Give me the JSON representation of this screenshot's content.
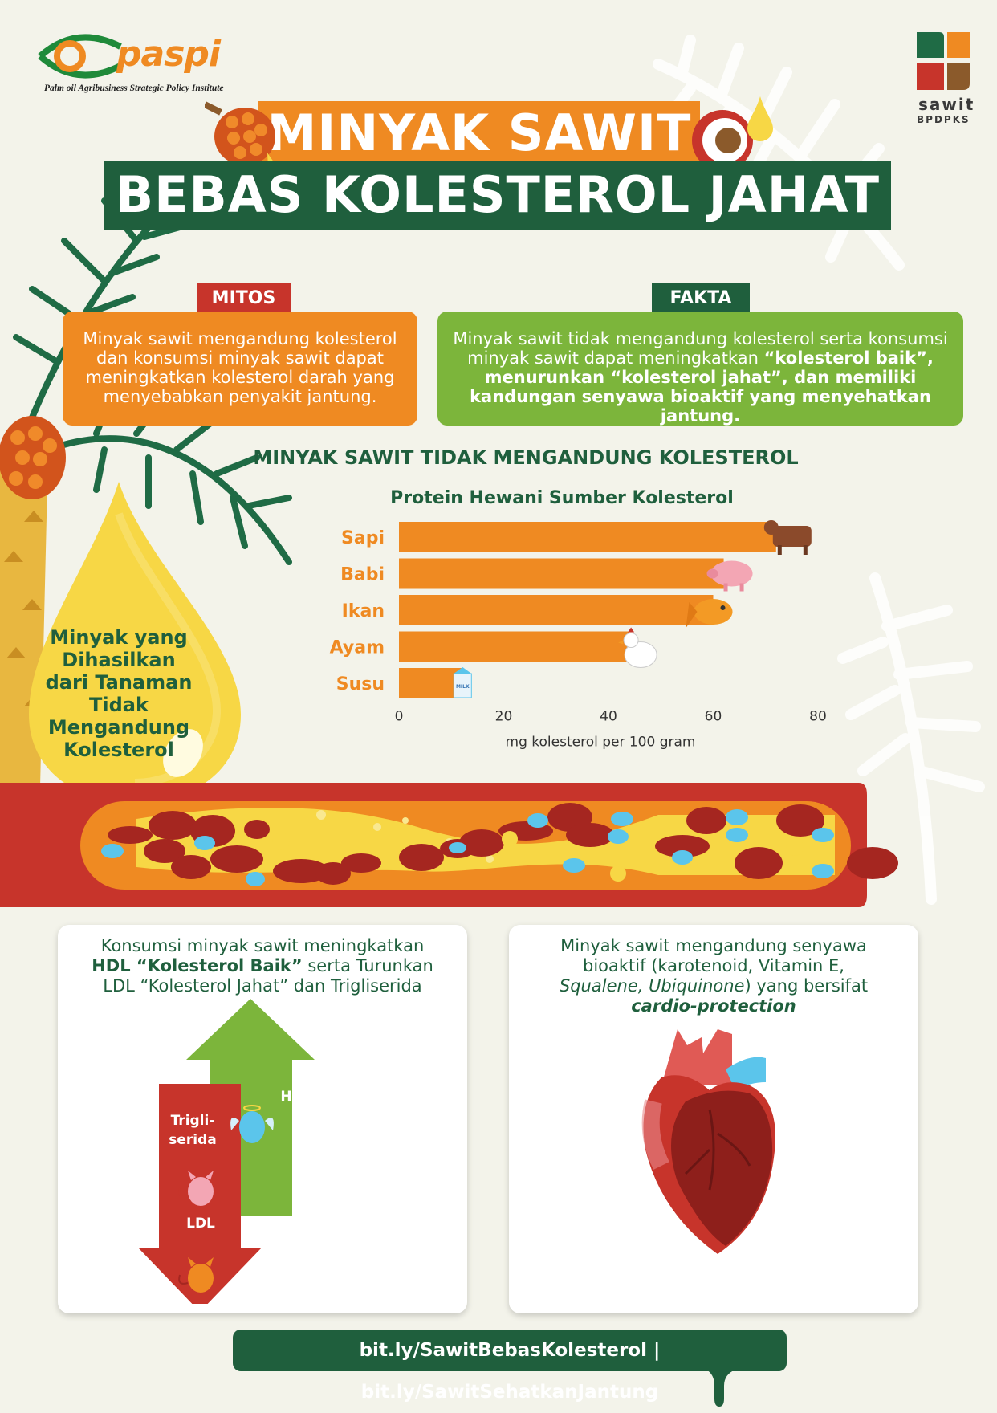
{
  "header": {
    "paspi_name": "paspi",
    "paspi_tagline": "Palm oil Agribusiness Strategic Policy Institute",
    "sawit_name": "sawit",
    "sawit_org": "BPDPKS",
    "title_line1": "MINYAK SAWIT",
    "title_line2": "BEBAS KOLESTEROL JAHAT"
  },
  "myth_fact": {
    "mitos_label": "MITOS",
    "mitos_text": "Minyak sawit mengandung kolesterol dan konsumsi minyak sawit dapat meningkatkan kolesterol darah yang menyebabkan penyakit jantung.",
    "fakta_label": "FAKTA",
    "fakta_text_plain": "Minyak sawit tidak mengandung kolesterol serta konsumsi minyak sawit dapat meningkatkan ",
    "fakta_text_bold": "“kolesterol baik”, menurunkan “kolesterol jahat”, dan memiliki kandungan senyawa bioaktif yang menyehatkan jantung."
  },
  "section_title": "MINYAK SAWIT TIDAK MENGANDUNG KOLESTEROL",
  "drop_text": "Minyak yang Dihasilkan dari Tanaman Tidak Mengandung Kolesterol",
  "chart_data": {
    "type": "bar",
    "orientation": "horizontal",
    "title": "Protein Hewani Sumber Kolesterol",
    "categories": [
      "Sapi",
      "Babi",
      "Ikan",
      "Ayam",
      "Susu"
    ],
    "values": [
      72,
      62,
      60,
      44,
      12
    ],
    "xlabel": "mg kolesterol per 100 gram",
    "xticks": [
      0,
      20,
      40,
      60,
      80
    ],
    "xlim": [
      0,
      80
    ],
    "bar_color": "#ef8a22",
    "label_color": "#ef8a22",
    "icons": [
      "cow-icon",
      "pig-icon",
      "fish-icon",
      "chicken-icon",
      "milk-icon"
    ],
    "milk_label": "MILK"
  },
  "card_left": {
    "line1": "Konsumsi minyak sawit meningkatkan",
    "line2_bold": "HDL “Kolesterol Baik”",
    "line2_rest": " serta Turunkan",
    "line3": "LDL “Kolesterol Jahat” dan Trigliserida",
    "hdl_label": "HDL",
    "trig_label": "Trigli- serida",
    "ldl_label": "LDL"
  },
  "card_right": {
    "line1": "Minyak sawit mengandung senyawa",
    "line2": "bioaktif (karotenoid, Vitamin E,",
    "line3_italic": "Squalene, Ubiquinone",
    "line3_rest": ") yang bersifat",
    "line4_bold": "cardio-protection"
  },
  "footer": {
    "link1": "bit.ly/SawitBebasKolesterol",
    "separator": " | ",
    "link2": "bit.ly/SawitSehatkanJantung"
  },
  "colors": {
    "orange": "#ef8a22",
    "dark_green": "#1f5f3d",
    "light_green": "#7cb53b",
    "red": "#c7342b",
    "yellow": "#f7d745",
    "background": "#f3f3ea"
  }
}
